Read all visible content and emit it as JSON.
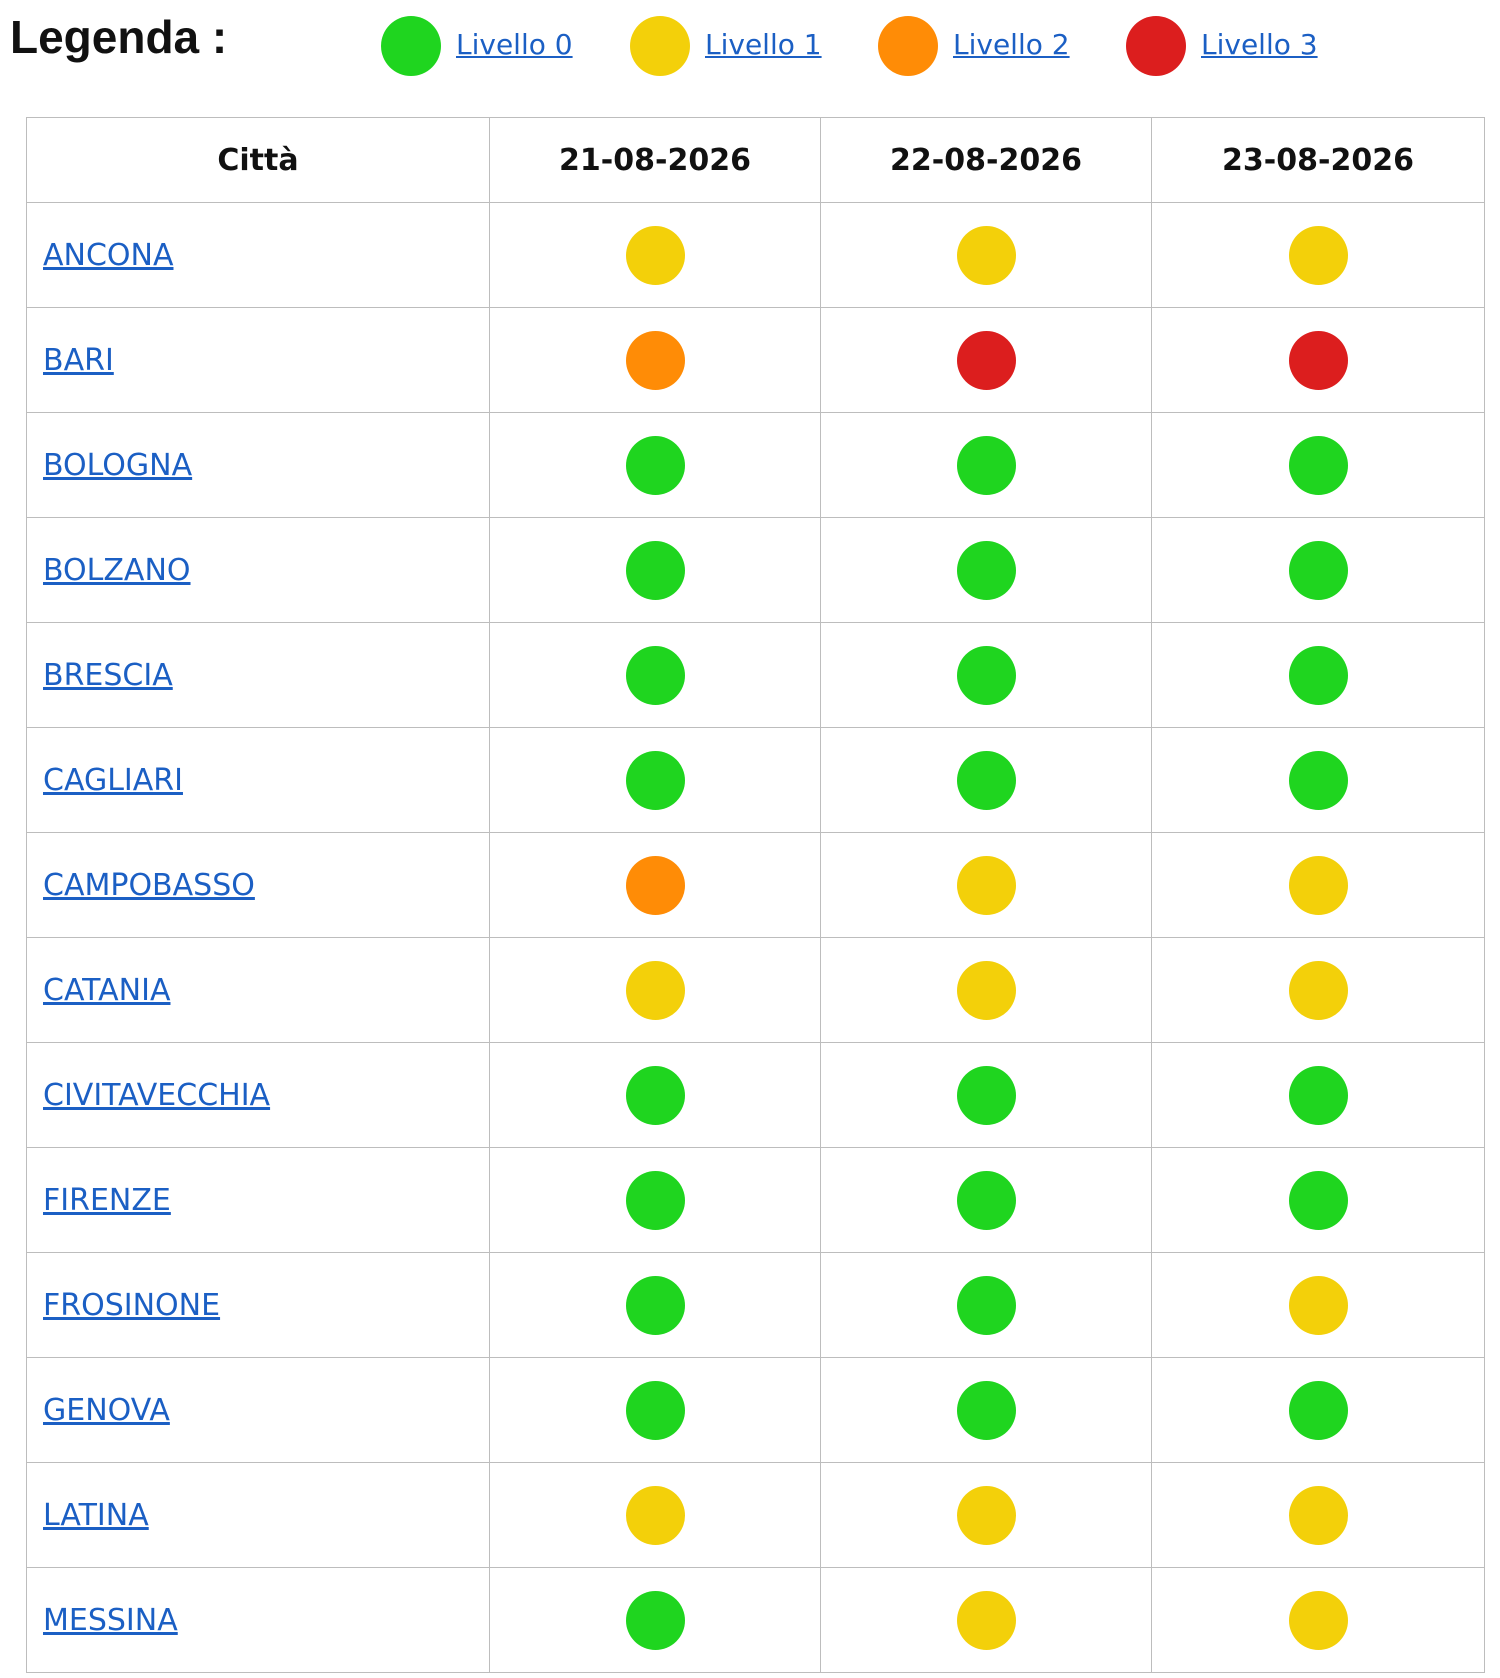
{
  "legend": {
    "title": "Legenda :",
    "levels": [
      {
        "label": "Livello 0",
        "color": "#1fd51f"
      },
      {
        "label": "Livello 1",
        "color": "#f3d00a"
      },
      {
        "label": "Livello 2",
        "color": "#ff8c06"
      },
      {
        "label": "Livello 3",
        "color": "#dc1e1e"
      }
    ]
  },
  "table": {
    "header": [
      "Città",
      "21-08-2026",
      "22-08-2026",
      "23-08-2026"
    ],
    "rows": [
      {
        "city": "ANCONA",
        "levels": [
          1,
          1,
          1
        ]
      },
      {
        "city": "BARI",
        "levels": [
          2,
          3,
          3
        ]
      },
      {
        "city": "BOLOGNA",
        "levels": [
          0,
          0,
          0
        ]
      },
      {
        "city": "BOLZANO",
        "levels": [
          0,
          0,
          0
        ]
      },
      {
        "city": "BRESCIA",
        "levels": [
          0,
          0,
          0
        ]
      },
      {
        "city": "CAGLIARI",
        "levels": [
          0,
          0,
          0
        ]
      },
      {
        "city": "CAMPOBASSO",
        "levels": [
          2,
          1,
          1
        ]
      },
      {
        "city": "CATANIA",
        "levels": [
          1,
          1,
          1
        ]
      },
      {
        "city": "CIVITAVECCHIA",
        "levels": [
          0,
          0,
          0
        ]
      },
      {
        "city": "FIRENZE",
        "levels": [
          0,
          0,
          0
        ]
      },
      {
        "city": "FROSINONE",
        "levels": [
          0,
          0,
          1
        ]
      },
      {
        "city": "GENOVA",
        "levels": [
          0,
          0,
          0
        ]
      },
      {
        "city": "LATINA",
        "levels": [
          1,
          1,
          1
        ]
      },
      {
        "city": "MESSINA",
        "levels": [
          0,
          1,
          1
        ]
      }
    ]
  }
}
